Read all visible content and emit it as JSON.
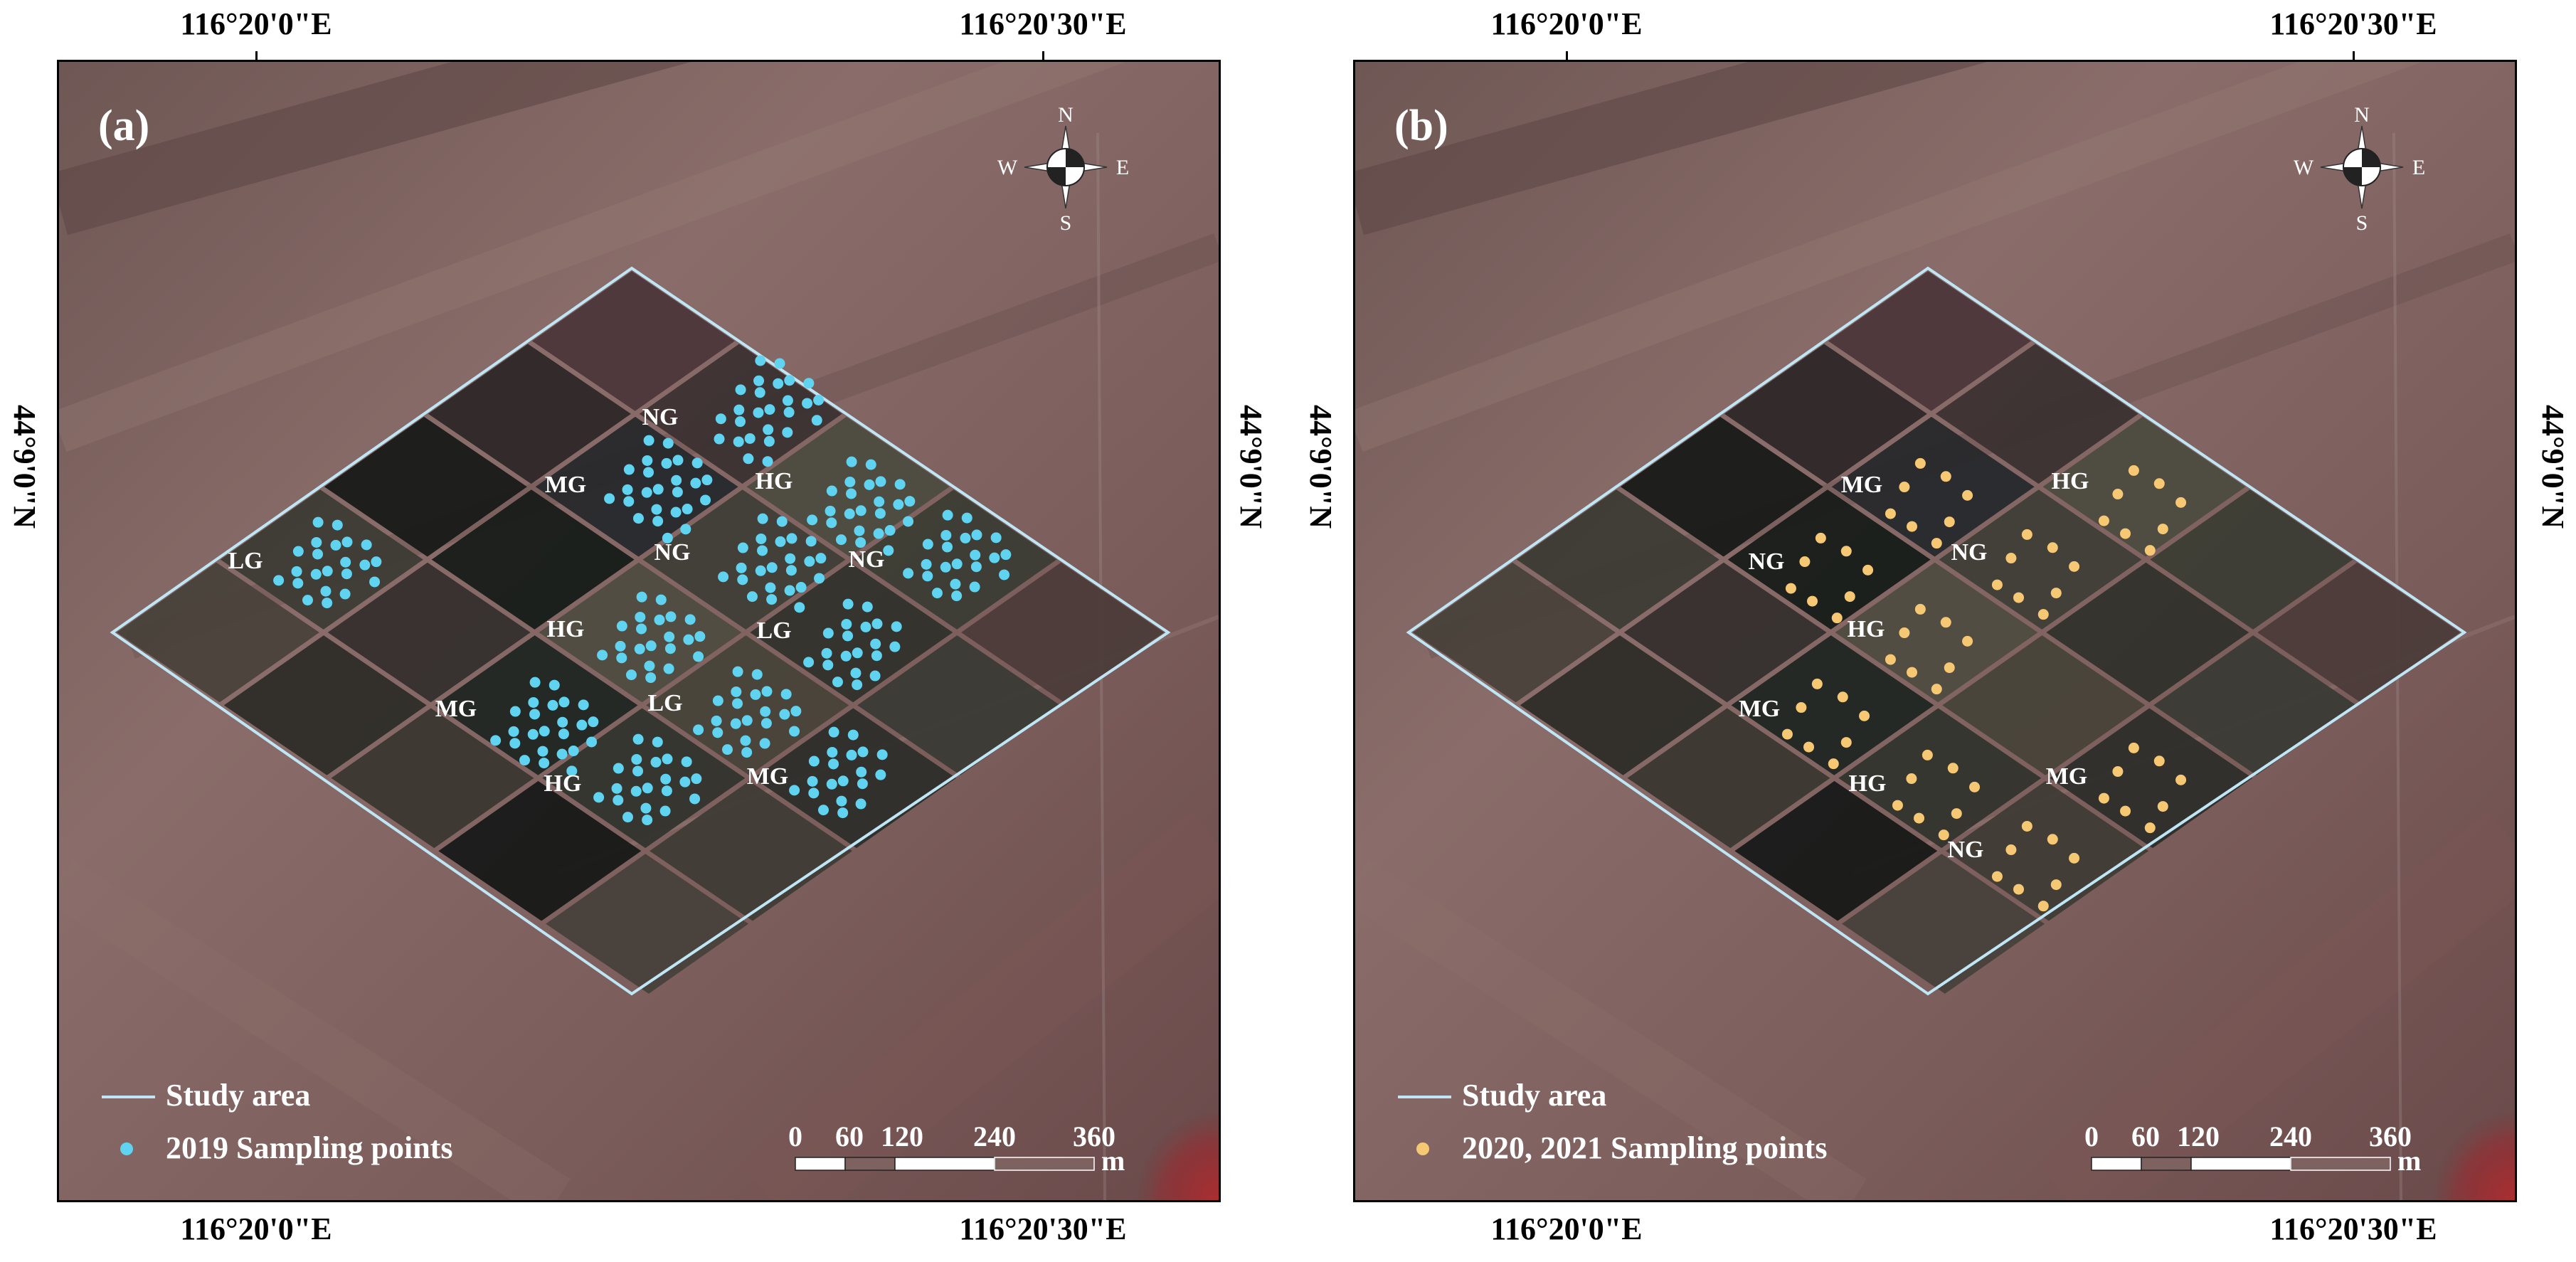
{
  "panels": [
    {
      "panel_label": "(a)",
      "lon_labels": [
        "116°20'0\"E",
        "116°20'30\"E"
      ],
      "lat_label": "44°9'0\"N",
      "compass": {
        "n": "N",
        "s": "S",
        "e": "E",
        "w": "W"
      },
      "zones": [
        {
          "label": "NG"
        },
        {
          "label": "MG"
        },
        {
          "label": "HG"
        },
        {
          "label": "LG"
        },
        {
          "label": "NG"
        },
        {
          "label": "NG"
        },
        {
          "label": "HG"
        },
        {
          "label": "LG"
        },
        {
          "label": "MG"
        },
        {
          "label": "LG"
        },
        {
          "label": "HG"
        },
        {
          "label": "MG"
        }
      ],
      "legend": {
        "line_label": "Study area",
        "points_label": "2019 Sampling points"
      },
      "points_color": "#5fd3f0",
      "scalebar": {
        "ticks": [
          "0",
          "60",
          "120",
          "240",
          "360"
        ],
        "unit": "m"
      }
    },
    {
      "panel_label": "(b)",
      "lon_labels": [
        "116°20'0\"E",
        "116°20'30\"E"
      ],
      "lat_label": "44°9'0\"N",
      "compass": {
        "n": "N",
        "s": "S",
        "e": "E",
        "w": "W"
      },
      "zones": [
        {
          "label": "MG"
        },
        {
          "label": "HG"
        },
        {
          "label": "NG"
        },
        {
          "label": "NG"
        },
        {
          "label": "HG"
        },
        {
          "label": "MG"
        },
        {
          "label": "HG"
        },
        {
          "label": "MG"
        },
        {
          "label": "NG"
        }
      ],
      "legend": {
        "line_label": "Study area",
        "points_label": "2020, 2021 Sampling points"
      },
      "points_color": "#f7c874",
      "scalebar": {
        "ticks": [
          "0",
          "60",
          "120",
          "240",
          "360"
        ],
        "unit": "m"
      }
    }
  ],
  "colors": {
    "study_area": "#bfe6f5",
    "background_field": "#7e6260",
    "dark_plot": "#1e2320",
    "vegetation_red": "#d61a1a"
  }
}
